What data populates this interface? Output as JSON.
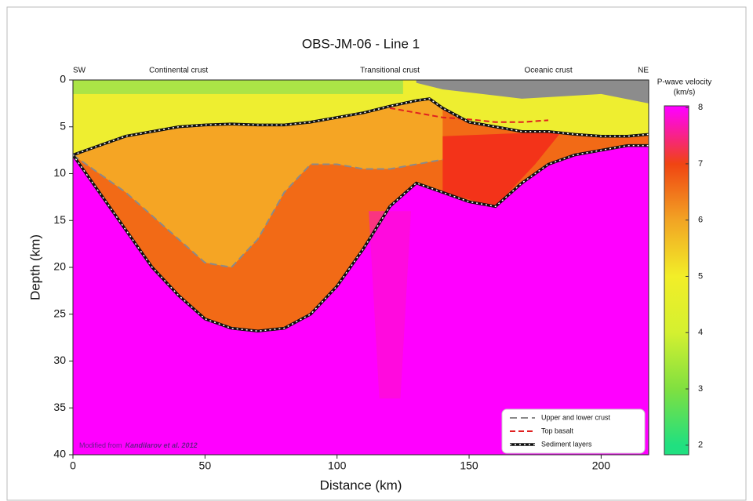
{
  "chart_data": {
    "type": "section",
    "title": "OBS-JM-06 - Line 1",
    "x_label": "Distance (km)",
    "y_label": "Depth (km)",
    "xlim": [
      0,
      218
    ],
    "xticks": [
      0,
      50,
      100,
      150,
      200
    ],
    "ylim": [
      40,
      0
    ],
    "yticks": [
      0,
      5,
      10,
      15,
      20,
      25,
      30,
      35,
      40
    ],
    "region_labels": [
      {
        "x": 0,
        "text": "SW"
      },
      {
        "x": 40,
        "text": "Continental crust"
      },
      {
        "x": 120,
        "text": "Transitional crust"
      },
      {
        "x": 180,
        "text": "Oceanic crust"
      },
      {
        "x": 218,
        "text": "NE"
      }
    ],
    "annotation": [
      "Modified from",
      "Kandilarov et al. 2012"
    ],
    "colorbar": {
      "label": [
        "P-wave velocity",
        "(km/s)"
      ],
      "clim": [
        1.83,
        8.03
      ],
      "ticks": [
        2,
        3,
        4,
        5,
        6,
        7,
        8
      ],
      "colors": [
        "#20e080",
        "#80e040",
        "#d4f030",
        "#f2ee28",
        "#f2a424",
        "#f04412",
        "#ff00ff"
      ]
    },
    "series": [
      {
        "name": "Upper and lower crust",
        "color": "#8a8a8a",
        "x": [
          0,
          10,
          20,
          30,
          40,
          50,
          60,
          70,
          80,
          90,
          100,
          110,
          120,
          130,
          140
        ],
        "values": [
          8,
          10,
          12,
          14.5,
          17,
          19.5,
          20,
          17,
          12,
          9,
          9,
          9.5,
          9.5,
          9,
          8.5
        ]
      },
      {
        "name": "Top basalt",
        "color": "#e02020",
        "x": [
          120,
          130,
          140,
          150,
          160,
          170,
          180
        ],
        "values": [
          3,
          3.5,
          4,
          4.2,
          4.5,
          4.5,
          4.3
        ]
      },
      {
        "name": "Sediment layers",
        "color": "#111111",
        "x": [
          0,
          10,
          20,
          30,
          40,
          50,
          60,
          70,
          80,
          90,
          100,
          110,
          120,
          130,
          135,
          140,
          150,
          160,
          170,
          180,
          190,
          200,
          210,
          218,
          null,
          0,
          10,
          20,
          30,
          40,
          50,
          60,
          70,
          80,
          90,
          100,
          110,
          120,
          130,
          140,
          150,
          160,
          170,
          180,
          190,
          200,
          210,
          218
        ],
        "values": [
          8,
          7,
          6,
          5.5,
          5,
          4.8,
          4.7,
          4.8,
          4.8,
          4.5,
          4,
          3.5,
          2.8,
          2.2,
          2,
          3,
          4.5,
          5,
          5.5,
          5.5,
          5.8,
          6,
          6,
          5.8,
          null,
          8,
          12,
          16,
          20,
          23,
          25.5,
          26.5,
          26.8,
          26.5,
          25,
          22,
          18,
          13.5,
          11,
          12,
          13,
          13.5,
          11,
          9,
          8,
          7.5,
          7,
          7
        ]
      }
    ]
  }
}
